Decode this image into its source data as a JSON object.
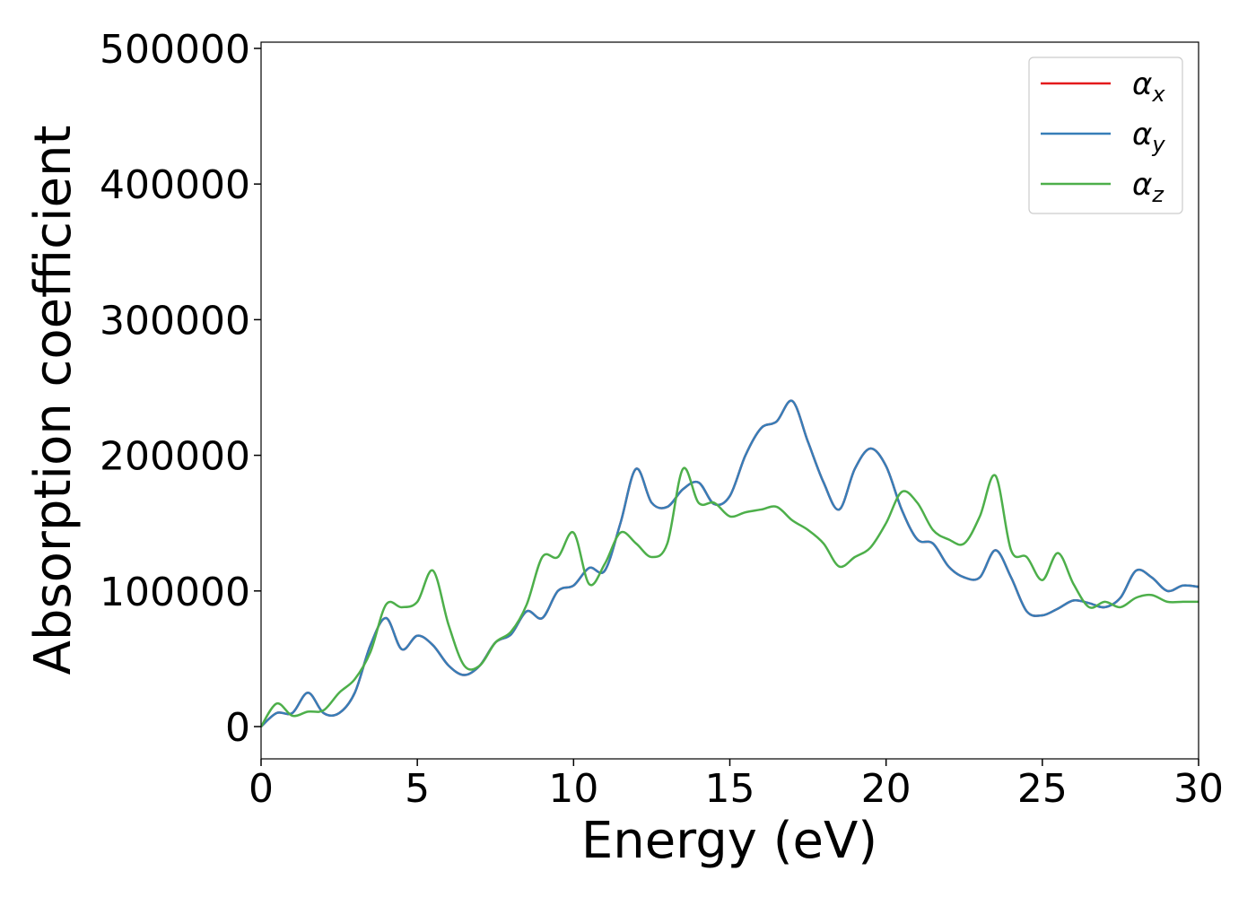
{
  "chart_data": {
    "type": "line",
    "xlabel": "Energy (eV)",
    "ylabel": "Absorption coefficient",
    "x": [
      0,
      0.5,
      1,
      1.5,
      2,
      2.5,
      3,
      3.5,
      4,
      4.5,
      5,
      5.5,
      6,
      6.5,
      7,
      7.5,
      8,
      8.5,
      9,
      9.5,
      10,
      10.5,
      11,
      11.5,
      12,
      12.5,
      13,
      13.5,
      14,
      14.5,
      15,
      15.5,
      16,
      16.5,
      17,
      17.5,
      18,
      18.5,
      19,
      19.5,
      20,
      20.5,
      21,
      21.5,
      22,
      22.5,
      23,
      23.5,
      24,
      24.5,
      25,
      25.5,
      26,
      26.5,
      27,
      27.5,
      28,
      28.5,
      29,
      29.5,
      30
    ],
    "series": [
      {
        "name": "αx",
        "color": "#e41a1c",
        "values": [
          0,
          10000,
          10000,
          25000,
          10000,
          10000,
          25000,
          60000,
          80000,
          57000,
          67000,
          60000,
          45000,
          38000,
          45000,
          62000,
          68000,
          85000,
          80000,
          100000,
          104000,
          117000,
          115000,
          150000,
          190000,
          165000,
          162000,
          175000,
          180000,
          164000,
          170000,
          200000,
          220000,
          225000,
          240000,
          210000,
          180000,
          160000,
          190000,
          205000,
          192000,
          160000,
          138000,
          135000,
          118000,
          110000,
          110000,
          130000,
          110000,
          85000,
          82000,
          87000,
          93000,
          91000,
          88000,
          95000,
          115000,
          110000,
          100000,
          104000,
          103000
        ]
      },
      {
        "name": "αy",
        "color": "#377eb8",
        "values": [
          0,
          10000,
          10000,
          25000,
          10000,
          10000,
          25000,
          60000,
          80000,
          57000,
          67000,
          60000,
          45000,
          38000,
          45000,
          62000,
          68000,
          85000,
          80000,
          100000,
          104000,
          117000,
          115000,
          150000,
          190000,
          165000,
          162000,
          175000,
          180000,
          164000,
          170000,
          200000,
          220000,
          225000,
          240000,
          210000,
          180000,
          160000,
          190000,
          205000,
          192000,
          160000,
          138000,
          135000,
          118000,
          110000,
          110000,
          130000,
          110000,
          85000,
          82000,
          87000,
          93000,
          91000,
          88000,
          95000,
          115000,
          110000,
          100000,
          104000,
          103000
        ]
      },
      {
        "name": "αz",
        "color": "#4daf4a",
        "values": [
          0,
          17000,
          8000,
          11000,
          12000,
          25000,
          35000,
          55000,
          90000,
          88000,
          92000,
          115000,
          75000,
          45000,
          45000,
          62000,
          70000,
          90000,
          125000,
          125000,
          143000,
          105000,
          120000,
          143000,
          135000,
          125000,
          135000,
          190000,
          165000,
          165000,
          155000,
          158000,
          160000,
          162000,
          152000,
          145000,
          135000,
          118000,
          125000,
          132000,
          150000,
          173000,
          165000,
          145000,
          138000,
          135000,
          155000,
          185000,
          130000,
          125000,
          108000,
          128000,
          105000,
          88000,
          92000,
          88000,
          95000,
          97000,
          92000,
          92000,
          92000
        ]
      }
    ],
    "xlim": [
      0,
      30
    ],
    "xticks": [
      0,
      5,
      10,
      15,
      20,
      25,
      30
    ],
    "ylim": [
      -23800,
      504600
    ],
    "yticks": [
      0,
      100000,
      200000,
      300000,
      400000,
      500000
    ],
    "grid": false,
    "legend": "upper right"
  }
}
